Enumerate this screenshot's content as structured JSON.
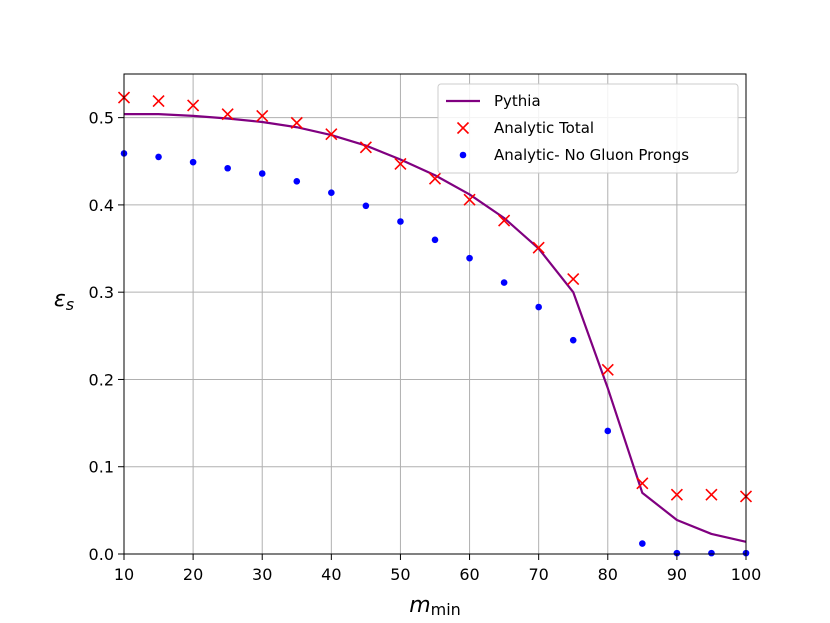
{
  "chart_data": {
    "type": "line",
    "title": "",
    "xlabel_main": "m",
    "xlabel_sub": "min",
    "ylabel_main": "ε",
    "ylabel_sub": "s",
    "xlim": [
      10,
      100
    ],
    "ylim": [
      0.0,
      0.55
    ],
    "x_ticks": [
      10,
      20,
      30,
      40,
      50,
      60,
      70,
      80,
      90,
      100
    ],
    "x_tick_labels": [
      "10",
      "20",
      "30",
      "40",
      "50",
      "60",
      "70",
      "80",
      "90",
      "100"
    ],
    "y_ticks": [
      0.0,
      0.1,
      0.2,
      0.3,
      0.4,
      0.5
    ],
    "y_tick_labels": [
      "0.0",
      "0.1",
      "0.2",
      "0.3",
      "0.4",
      "0.5"
    ],
    "grid": true,
    "legend_position": "top-right",
    "series": [
      {
        "name": "Pythia",
        "style": "line",
        "color": "#800080",
        "x": [
          10,
          15,
          20,
          25,
          30,
          35,
          40,
          45,
          50,
          55,
          60,
          65,
          70,
          75,
          80,
          85,
          90,
          95,
          100
        ],
        "y": [
          0.504,
          0.504,
          0.502,
          0.499,
          0.495,
          0.489,
          0.48,
          0.468,
          0.452,
          0.434,
          0.412,
          0.385,
          0.35,
          0.3,
          0.19,
          0.07,
          0.039,
          0.023,
          0.014
        ]
      },
      {
        "name": "Analytic Total",
        "style": "x-marker",
        "color": "#ff0000",
        "x": [
          10,
          15,
          20,
          25,
          30,
          35,
          40,
          45,
          50,
          55,
          60,
          65,
          70,
          75,
          80,
          85,
          90,
          95,
          100
        ],
        "y": [
          0.523,
          0.519,
          0.514,
          0.504,
          0.502,
          0.494,
          0.481,
          0.466,
          0.447,
          0.43,
          0.406,
          0.382,
          0.351,
          0.315,
          0.211,
          0.081,
          0.068,
          0.068,
          0.066
        ]
      },
      {
        "name": "Analytic- No Gluon Prongs",
        "style": "dot",
        "color": "#0000ff",
        "x": [
          10,
          15,
          20,
          25,
          30,
          35,
          40,
          45,
          50,
          55,
          60,
          65,
          70,
          75,
          80,
          85,
          90,
          95,
          100
        ],
        "y": [
          0.459,
          0.455,
          0.449,
          0.442,
          0.436,
          0.427,
          0.414,
          0.399,
          0.381,
          0.36,
          0.339,
          0.311,
          0.283,
          0.245,
          0.141,
          0.012,
          0.001,
          0.001,
          0.001
        ]
      }
    ]
  }
}
